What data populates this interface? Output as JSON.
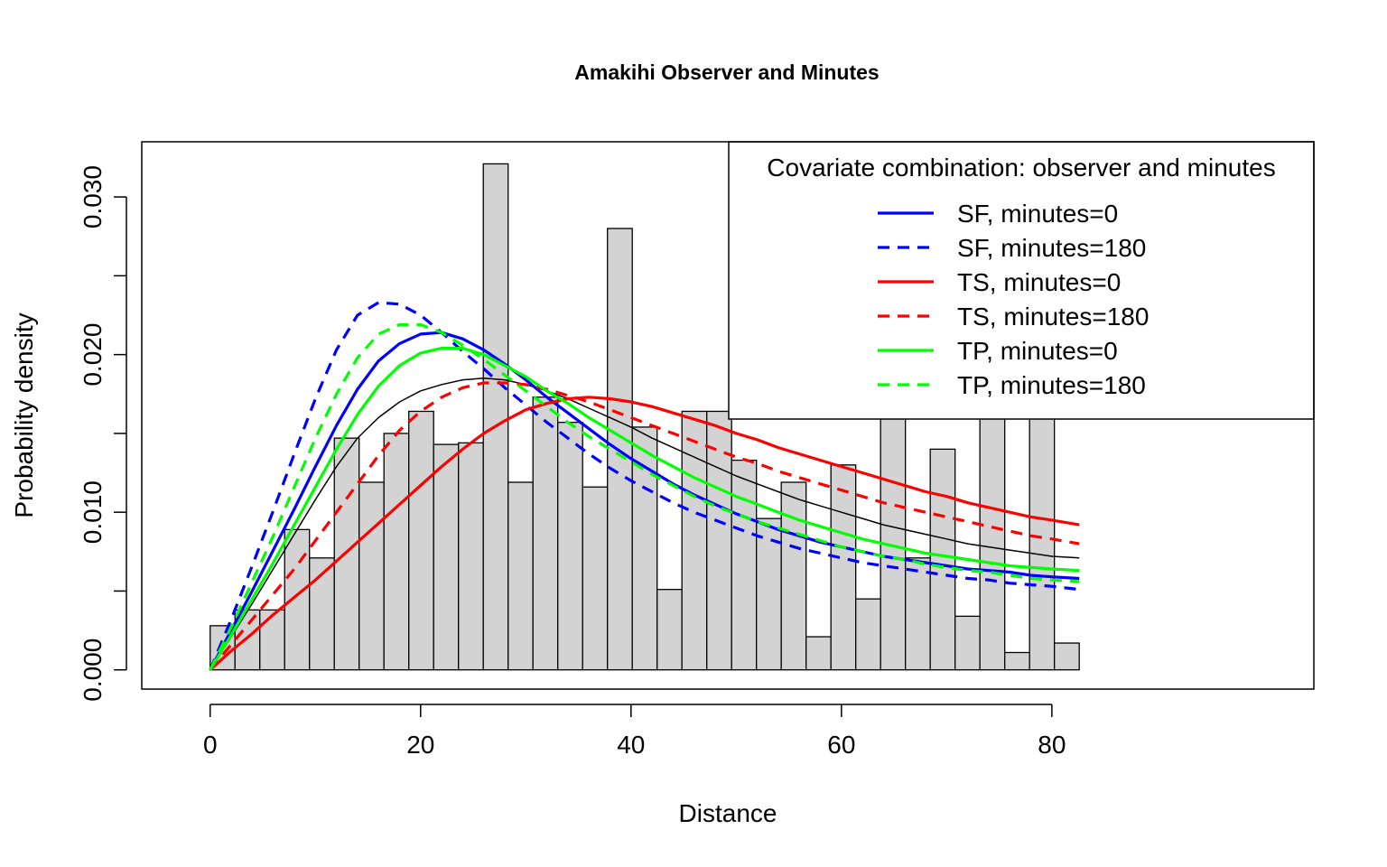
{
  "chart_data": {
    "type": "histogram",
    "title": "Amakihi Observer and Minutes",
    "xlabel": "Distance",
    "ylabel": "Probability density",
    "xlim": [
      -6.5,
      171
    ],
    "ylim": [
      -0.00122,
      0.0335
    ],
    "x_ticks": [
      0,
      20,
      40,
      60,
      80
    ],
    "x_tick_labels": [
      "0",
      "20",
      "40",
      "60",
      "80"
    ],
    "y_ticks": [
      0.0,
      0.005,
      0.01,
      0.015,
      0.02,
      0.025,
      0.03
    ],
    "y_tick_labels": [
      "0.000",
      "",
      "0.010",
      "",
      "0.020",
      "",
      "0.030"
    ],
    "grid": false,
    "histogram": {
      "bin_width": 2.36,
      "bin_start": 0,
      "fill": "#d3d3d3",
      "edge": "#000000",
      "values": [
        0.0028,
        0.0038,
        0.0038,
        0.0089,
        0.0071,
        0.0147,
        0.0119,
        0.015,
        0.0164,
        0.0143,
        0.0144,
        0.0321,
        0.0119,
        0.0173,
        0.0157,
        0.0116,
        0.028,
        0.0154,
        0.0051,
        0.0164,
        0.0164,
        0.0133,
        0.0096,
        0.0119,
        0.0021,
        0.013,
        0.0045,
        0.0164,
        0.0071,
        0.014,
        0.0034,
        0.0164,
        0.0011,
        0.0164,
        0.0017
      ]
    },
    "x": [
      0,
      2,
      4,
      6,
      8,
      10,
      12,
      14,
      16,
      18,
      20,
      22,
      24,
      26,
      28,
      30,
      32,
      34,
      36,
      38,
      40,
      42,
      44,
      46,
      48,
      50,
      52,
      54,
      56,
      58,
      60,
      62,
      64,
      66,
      68,
      70,
      72,
      74,
      76,
      78,
      80,
      82.6
    ],
    "series": [
      {
        "name": "",
        "color": "#000000",
        "dash": "solid",
        "width": 1.5,
        "values": [
          0,
          0.0021,
          0.0042,
          0.0064,
          0.0086,
          0.0108,
          0.0129,
          0.0147,
          0.016,
          0.017,
          0.0177,
          0.0181,
          0.0184,
          0.0185,
          0.0184,
          0.0181,
          0.0177,
          0.0172,
          0.0166,
          0.016,
          0.0154,
          0.0147,
          0.0141,
          0.0135,
          0.0129,
          0.0123,
          0.0118,
          0.0113,
          0.0108,
          0.0104,
          0.01,
          0.0096,
          0.0092,
          0.0089,
          0.0086,
          0.0083,
          0.008,
          0.0078,
          0.0076,
          0.0074,
          0.0072,
          0.0071
        ]
      },
      {
        "name": "SF, minutes=0",
        "color": "#0000ff",
        "dash": "solid",
        "width": 3.2,
        "values": [
          0,
          0.0025,
          0.005,
          0.0076,
          0.0102,
          0.0129,
          0.0155,
          0.0178,
          0.0196,
          0.0207,
          0.0213,
          0.0214,
          0.021,
          0.0203,
          0.0194,
          0.0184,
          0.0173,
          0.0163,
          0.0153,
          0.0143,
          0.0134,
          0.0126,
          0.0118,
          0.0111,
          0.0105,
          0.0099,
          0.0094,
          0.0089,
          0.0085,
          0.0081,
          0.0078,
          0.0075,
          0.0072,
          0.007,
          0.0068,
          0.0066,
          0.0064,
          0.0063,
          0.0062,
          0.006,
          0.0059,
          0.0058
        ]
      },
      {
        "name": "SF, minutes=180",
        "color": "#0000ff",
        "dash": "dashed",
        "width": 3.2,
        "values": [
          0,
          0.0032,
          0.0066,
          0.0101,
          0.0137,
          0.0172,
          0.0203,
          0.0225,
          0.0233,
          0.0232,
          0.0225,
          0.0214,
          0.0202,
          0.0191,
          0.0179,
          0.0168,
          0.0157,
          0.0147,
          0.0137,
          0.0128,
          0.012,
          0.0113,
          0.0106,
          0.01,
          0.0095,
          0.009,
          0.0085,
          0.0081,
          0.0077,
          0.0074,
          0.0071,
          0.0068,
          0.0066,
          0.0064,
          0.0062,
          0.006,
          0.0058,
          0.0057,
          0.0055,
          0.0054,
          0.0053,
          0.0051
        ]
      },
      {
        "name": "TS, minutes=0",
        "color": "#ff0000",
        "dash": "solid",
        "width": 3.2,
        "values": [
          0,
          0.0012,
          0.0023,
          0.0035,
          0.0046,
          0.0057,
          0.0069,
          0.0081,
          0.0093,
          0.0105,
          0.0117,
          0.0129,
          0.014,
          0.015,
          0.0158,
          0.0165,
          0.0169,
          0.0172,
          0.0173,
          0.0172,
          0.017,
          0.0167,
          0.0163,
          0.0159,
          0.0155,
          0.015,
          0.0146,
          0.0141,
          0.0137,
          0.0133,
          0.0129,
          0.0125,
          0.0121,
          0.0117,
          0.0113,
          0.011,
          0.0106,
          0.0103,
          0.01,
          0.0097,
          0.0095,
          0.0092
        ]
      },
      {
        "name": "TS, minutes=180",
        "color": "#ff0000",
        "dash": "dashed",
        "width": 3.2,
        "values": [
          0,
          0.0016,
          0.0032,
          0.0048,
          0.0064,
          0.0082,
          0.01,
          0.0118,
          0.0136,
          0.0152,
          0.0164,
          0.0173,
          0.0179,
          0.0182,
          0.0182,
          0.0181,
          0.0178,
          0.0174,
          0.017,
          0.0165,
          0.016,
          0.0155,
          0.015,
          0.0145,
          0.014,
          0.0135,
          0.0131,
          0.0126,
          0.0122,
          0.0118,
          0.0114,
          0.011,
          0.0106,
          0.0103,
          0.01,
          0.0097,
          0.0094,
          0.0091,
          0.0088,
          0.0085,
          0.0083,
          0.008
        ]
      },
      {
        "name": "TP, minutes=0",
        "color": "#00ff00",
        "dash": "solid",
        "width": 3.2,
        "values": [
          0,
          0.0022,
          0.0045,
          0.0068,
          0.0092,
          0.0116,
          0.014,
          0.0162,
          0.018,
          0.0193,
          0.0201,
          0.0204,
          0.0204,
          0.02,
          0.0193,
          0.0186,
          0.0177,
          0.0169,
          0.016,
          0.0152,
          0.0144,
          0.0136,
          0.0129,
          0.0122,
          0.0116,
          0.011,
          0.0105,
          0.01,
          0.0095,
          0.0091,
          0.0087,
          0.0083,
          0.008,
          0.0077,
          0.0074,
          0.0072,
          0.007,
          0.0068,
          0.0066,
          0.0065,
          0.0064,
          0.0063
        ]
      },
      {
        "name": "TP, minutes=180",
        "color": "#00ff00",
        "dash": "dashed",
        "width": 3.2,
        "values": [
          0,
          0.0027,
          0.0056,
          0.0085,
          0.0116,
          0.0147,
          0.0175,
          0.0198,
          0.0213,
          0.0219,
          0.0219,
          0.0214,
          0.0206,
          0.0197,
          0.0187,
          0.0177,
          0.0167,
          0.0157,
          0.0148,
          0.014,
          0.0132,
          0.0124,
          0.0117,
          0.011,
          0.0104,
          0.0099,
          0.0094,
          0.009,
          0.0086,
          0.0082,
          0.0078,
          0.0075,
          0.0072,
          0.007,
          0.0067,
          0.0065,
          0.0063,
          0.0062,
          0.006,
          0.0058,
          0.0057,
          0.0056
        ]
      }
    ],
    "legend": {
      "title": "Covariate combination: observer and minutes",
      "position": "top-right",
      "entries": [
        {
          "label": "SF, minutes=0",
          "color": "#0000ff",
          "dash": "solid"
        },
        {
          "label": "SF, minutes=180",
          "color": "#0000ff",
          "dash": "dashed"
        },
        {
          "label": "TS, minutes=0",
          "color": "#ff0000",
          "dash": "solid"
        },
        {
          "label": "TS, minutes=180",
          "color": "#ff0000",
          "dash": "dashed"
        },
        {
          "label": "TP, minutes=0",
          "color": "#00ff00",
          "dash": "solid"
        },
        {
          "label": "TP, minutes=180",
          "color": "#00ff00",
          "dash": "dashed"
        }
      ]
    }
  }
}
